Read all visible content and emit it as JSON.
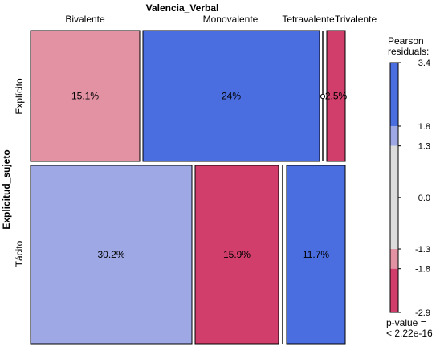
{
  "chart_data": {
    "type": "mosaic",
    "title": "Valencia_Verbal",
    "row_variable": "Explicitud_sujeto",
    "col_variable": "Valencia_Verbal",
    "columns": [
      "Bivalente",
      "Monovalente",
      "Tetravalente",
      "Trivalente"
    ],
    "rows": [
      "Explícito",
      "Tácito"
    ],
    "cells": [
      {
        "row": "Explícito",
        "col": "Bivalente",
        "label": "15.1%",
        "color": "#e292a3"
      },
      {
        "row": "Explícito",
        "col": "Monovalente",
        "label": "24%",
        "color": "#4a6de0"
      },
      {
        "row": "Explícito",
        "col": "Tetravalente",
        "label": "",
        "color": "#ffffff"
      },
      {
        "row": "Explícito",
        "col": "Trivalente",
        "label": "2.5%",
        "color": "#d13e6b"
      },
      {
        "row": "Tácito",
        "col": "Bivalente",
        "label": "30.2%",
        "color": "#9da8e4"
      },
      {
        "row": "Tácito",
        "col": "Monovalente",
        "label": "15.9%",
        "color": "#d13e6b"
      },
      {
        "row": "Tácito",
        "col": "Tetravalente",
        "label": "",
        "color": "#ffffff"
      },
      {
        "row": "Tácito",
        "col": "Trivalente",
        "label": "11.7%",
        "color": "#4a6de0"
      }
    ],
    "legend": {
      "title_line1": "Pearson",
      "title_line2": "residuals:",
      "max": 3.4,
      "min": -2.9,
      "ticks": [
        "3.4",
        "1.8",
        "1.3",
        "0.0",
        "-1.3",
        "-1.8",
        "-2.9"
      ],
      "bands": [
        {
          "from": 1.8,
          "to": 3.4,
          "color": "#4a6de0"
        },
        {
          "from": 1.3,
          "to": 1.8,
          "color": "#9da8e4"
        },
        {
          "from": -1.3,
          "to": 1.3,
          "color": "#dcdcdc"
        },
        {
          "from": -1.8,
          "to": -1.3,
          "color": "#e292a3"
        },
        {
          "from": -2.9,
          "to": -1.8,
          "color": "#d13e6b"
        }
      ],
      "pvalue_line1": "p-value =",
      "pvalue_line2": "< 2.22e-16"
    }
  }
}
